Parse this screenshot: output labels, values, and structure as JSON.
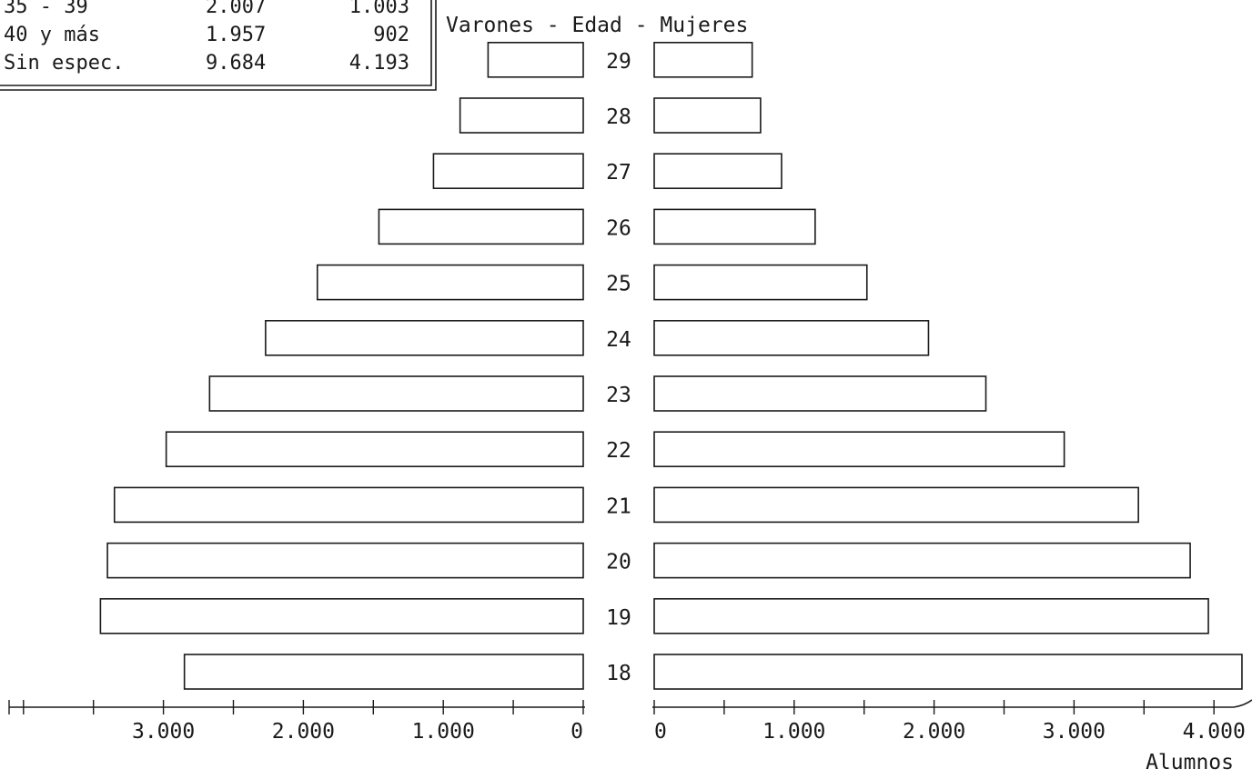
{
  "table": {
    "rows": [
      {
        "label": "35 - 39",
        "men": "2.007",
        "women": "1.003"
      },
      {
        "label": "40 y más",
        "men": "1.957",
        "women": "902"
      },
      {
        "label": "Sin espec.",
        "men": "9.684",
        "women": "4.193"
      }
    ]
  },
  "chart_data": {
    "type": "bar",
    "title": "Varones - Edad - Mujeres",
    "xlabel": "Alumnos",
    "categories": [
      "18",
      "19",
      "20",
      "21",
      "22",
      "23",
      "24",
      "25",
      "26",
      "27",
      "28",
      "29"
    ],
    "series": [
      {
        "name": "Varones",
        "values": [
          2850,
          3450,
          3400,
          3350,
          2980,
          2670,
          2270,
          1900,
          1460,
          1070,
          880,
          680
        ]
      },
      {
        "name": "Mujeres",
        "values": [
          4200,
          3960,
          3830,
          3460,
          2930,
          2370,
          1960,
          1520,
          1150,
          910,
          760,
          700
        ]
      }
    ],
    "left_ticks": [
      "3.000",
      "2.000",
      "1.000",
      "0"
    ],
    "right_ticks": [
      "0",
      "1.000",
      "2.000",
      "3.000",
      "4.000"
    ],
    "xlim": [
      0,
      4000
    ],
    "grid": false
  }
}
